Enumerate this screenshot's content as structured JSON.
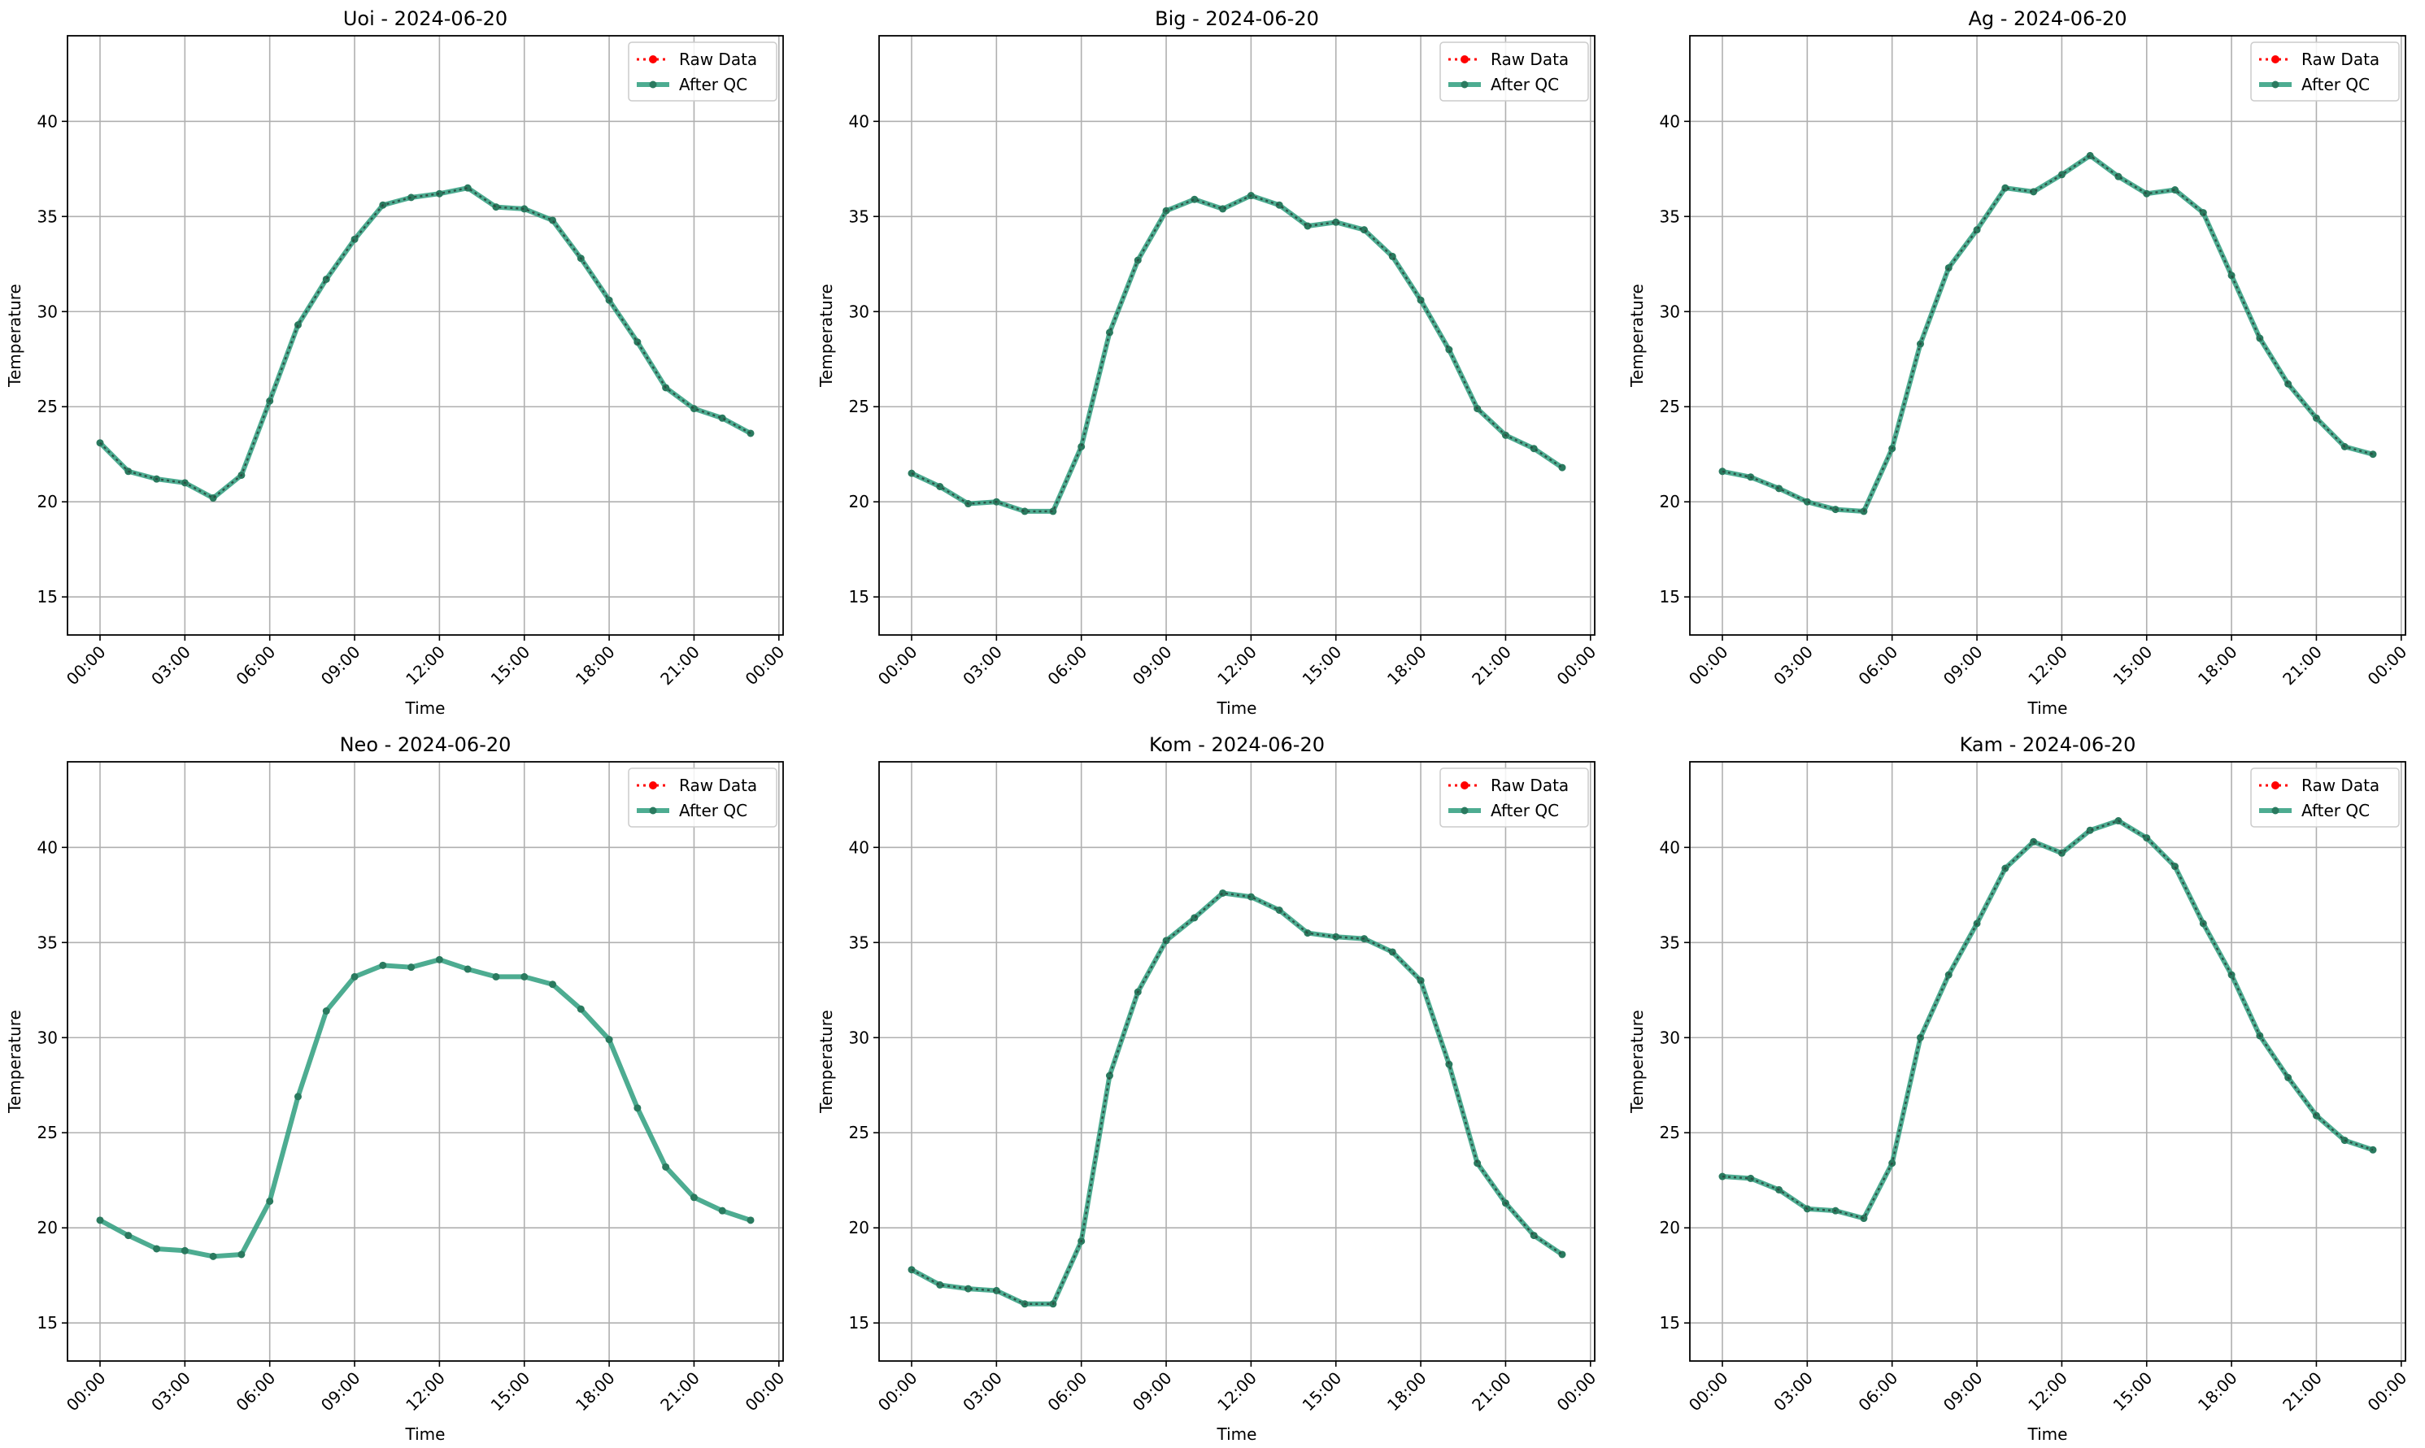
{
  "figure": {
    "background": "#ffffff"
  },
  "style": {
    "raw_color": "#ff0000",
    "qc_color": "#2e9e7e",
    "qc_marker_color": "#2a7a5f",
    "grid_color": "#b0b0b0"
  },
  "chart_data": [
    {
      "type": "line",
      "title": "Uoi - 2024-06-20",
      "xlabel": "Time",
      "ylabel": "Temperature",
      "x_hours": [
        0,
        1,
        2,
        3,
        4,
        5,
        6,
        7,
        8,
        9,
        10,
        11,
        12,
        13,
        14,
        15,
        16,
        17,
        18,
        19,
        20,
        21,
        22,
        23
      ],
      "xticks": [
        "00:00",
        "03:00",
        "06:00",
        "09:00",
        "12:00",
        "15:00",
        "18:00",
        "21:00",
        "00:00"
      ],
      "xlim_hours": [
        -1.15,
        24.15
      ],
      "yticks": [
        15,
        20,
        25,
        30,
        35,
        40
      ],
      "ylim": [
        13,
        44.5
      ],
      "grid": true,
      "legend": "upper right",
      "raw_visible": true,
      "series": [
        {
          "name": "Raw Data",
          "values": [
            23.1,
            21.6,
            21.2,
            21.0,
            20.2,
            21.4,
            25.3,
            29.3,
            31.7,
            33.8,
            35.6,
            36.0,
            36.2,
            36.5,
            35.5,
            35.4,
            34.8,
            32.8,
            30.6,
            28.4,
            26.0,
            24.9,
            24.4,
            23.6
          ]
        },
        {
          "name": "After QC",
          "values": [
            23.1,
            21.6,
            21.2,
            21.0,
            20.2,
            21.4,
            25.3,
            29.3,
            31.7,
            33.8,
            35.6,
            36.0,
            36.2,
            36.5,
            35.5,
            35.4,
            34.8,
            32.8,
            30.6,
            28.4,
            26.0,
            24.9,
            24.4,
            23.6
          ]
        }
      ]
    },
    {
      "type": "line",
      "title": "Big - 2024-06-20",
      "xlabel": "Time",
      "ylabel": "Temperature",
      "x_hours": [
        0,
        1,
        2,
        3,
        4,
        5,
        6,
        7,
        8,
        9,
        10,
        11,
        12,
        13,
        14,
        15,
        16,
        17,
        18,
        19,
        20,
        21,
        22,
        23
      ],
      "xticks": [
        "00:00",
        "03:00",
        "06:00",
        "09:00",
        "12:00",
        "15:00",
        "18:00",
        "21:00",
        "00:00"
      ],
      "xlim_hours": [
        -1.15,
        24.15
      ],
      "yticks": [
        15,
        20,
        25,
        30,
        35,
        40
      ],
      "ylim": [
        13,
        44.5
      ],
      "grid": true,
      "legend": "upper right",
      "raw_visible": true,
      "series": [
        {
          "name": "Raw Data",
          "values": [
            21.5,
            20.8,
            19.9,
            20.0,
            19.5,
            19.5,
            22.9,
            28.9,
            32.7,
            35.3,
            35.9,
            35.4,
            36.1,
            35.6,
            34.5,
            34.7,
            34.3,
            32.9,
            30.6,
            28.0,
            24.9,
            23.5,
            22.8,
            21.8
          ]
        },
        {
          "name": "After QC",
          "values": [
            21.5,
            20.8,
            19.9,
            20.0,
            19.5,
            19.5,
            22.9,
            28.9,
            32.7,
            35.3,
            35.9,
            35.4,
            36.1,
            35.6,
            34.5,
            34.7,
            34.3,
            32.9,
            30.6,
            28.0,
            24.9,
            23.5,
            22.8,
            21.8
          ]
        }
      ]
    },
    {
      "type": "line",
      "title": "Ag - 2024-06-20",
      "xlabel": "Time",
      "ylabel": "Temperature",
      "x_hours": [
        0,
        1,
        2,
        3,
        4,
        5,
        6,
        7,
        8,
        9,
        10,
        11,
        12,
        13,
        14,
        15,
        16,
        17,
        18,
        19,
        20,
        21,
        22,
        23
      ],
      "xticks": [
        "00:00",
        "03:00",
        "06:00",
        "09:00",
        "12:00",
        "15:00",
        "18:00",
        "21:00",
        "00:00"
      ],
      "xlim_hours": [
        -1.15,
        24.15
      ],
      "yticks": [
        15,
        20,
        25,
        30,
        35,
        40
      ],
      "ylim": [
        13,
        44.5
      ],
      "grid": true,
      "legend": "upper right",
      "raw_visible": true,
      "series": [
        {
          "name": "Raw Data",
          "values": [
            21.6,
            21.3,
            20.7,
            20.0,
            19.6,
            19.5,
            22.8,
            28.3,
            32.3,
            34.3,
            36.5,
            36.3,
            37.2,
            38.2,
            37.1,
            36.2,
            36.4,
            35.2,
            31.9,
            28.6,
            26.2,
            24.4,
            22.9,
            22.5
          ]
        },
        {
          "name": "After QC",
          "values": [
            21.6,
            21.3,
            20.7,
            20.0,
            19.6,
            19.5,
            22.8,
            28.3,
            32.3,
            34.3,
            36.5,
            36.3,
            37.2,
            38.2,
            37.1,
            36.2,
            36.4,
            35.2,
            31.9,
            28.6,
            26.2,
            24.4,
            22.9,
            22.5
          ]
        }
      ]
    },
    {
      "type": "line",
      "title": "Neo - 2024-06-20",
      "xlabel": "Time",
      "ylabel": "Temperature",
      "x_hours": [
        0,
        1,
        2,
        3,
        4,
        5,
        6,
        7,
        8,
        9,
        10,
        11,
        12,
        13,
        14,
        15,
        16,
        17,
        18,
        19,
        20,
        21,
        22,
        23
      ],
      "xticks": [
        "00:00",
        "03:00",
        "06:00",
        "09:00",
        "12:00",
        "15:00",
        "18:00",
        "21:00",
        "00:00"
      ],
      "xlim_hours": [
        -1.15,
        24.15
      ],
      "yticks": [
        15,
        20,
        25,
        30,
        35,
        40
      ],
      "ylim": [
        13,
        44.5
      ],
      "grid": true,
      "legend": "upper right",
      "raw_visible": false,
      "series": [
        {
          "name": "Raw Data",
          "values": []
        },
        {
          "name": "After QC",
          "values": [
            20.4,
            19.6,
            18.9,
            18.8,
            18.5,
            18.6,
            21.4,
            26.9,
            31.4,
            33.2,
            33.8,
            33.7,
            34.1,
            33.6,
            33.2,
            33.2,
            32.8,
            31.5,
            29.9,
            26.3,
            23.2,
            21.6,
            20.9,
            20.4
          ]
        }
      ]
    },
    {
      "type": "line",
      "title": "Kom - 2024-06-20",
      "xlabel": "Time",
      "ylabel": "Temperature",
      "x_hours": [
        0,
        1,
        2,
        3,
        4,
        5,
        6,
        7,
        8,
        9,
        10,
        11,
        12,
        13,
        14,
        15,
        16,
        17,
        18,
        19,
        20,
        21,
        22,
        23
      ],
      "xticks": [
        "00:00",
        "03:00",
        "06:00",
        "09:00",
        "12:00",
        "15:00",
        "18:00",
        "21:00",
        "00:00"
      ],
      "xlim_hours": [
        -1.15,
        24.15
      ],
      "yticks": [
        15,
        20,
        25,
        30,
        35,
        40
      ],
      "ylim": [
        13,
        44.5
      ],
      "grid": true,
      "legend": "upper right",
      "raw_visible": true,
      "series": [
        {
          "name": "Raw Data",
          "values": [
            17.8,
            17.0,
            16.8,
            16.7,
            16.0,
            16.0,
            19.3,
            28.0,
            32.4,
            35.1,
            36.3,
            37.6,
            37.4,
            36.7,
            35.5,
            35.3,
            35.2,
            34.5,
            33.0,
            28.6,
            23.4,
            21.3,
            19.6,
            18.6
          ]
        },
        {
          "name": "After QC",
          "values": [
            17.8,
            17.0,
            16.8,
            16.7,
            16.0,
            16.0,
            19.3,
            28.0,
            32.4,
            35.1,
            36.3,
            37.6,
            37.4,
            36.7,
            35.5,
            35.3,
            35.2,
            34.5,
            33.0,
            28.6,
            23.4,
            21.3,
            19.6,
            18.6
          ]
        }
      ]
    },
    {
      "type": "line",
      "title": "Kam - 2024-06-20",
      "xlabel": "Time",
      "ylabel": "Temperature",
      "x_hours": [
        0,
        1,
        2,
        3,
        4,
        5,
        6,
        7,
        8,
        9,
        10,
        11,
        12,
        13,
        14,
        15,
        16,
        17,
        18,
        19,
        20,
        21,
        22,
        23
      ],
      "xticks": [
        "00:00",
        "03:00",
        "06:00",
        "09:00",
        "12:00",
        "15:00",
        "18:00",
        "21:00",
        "00:00"
      ],
      "xlim_hours": [
        -1.15,
        24.15
      ],
      "yticks": [
        15,
        20,
        25,
        30,
        35,
        40
      ],
      "ylim": [
        13,
        44.5
      ],
      "grid": true,
      "legend": "upper right",
      "raw_visible": true,
      "series": [
        {
          "name": "Raw Data",
          "values": [
            22.7,
            22.6,
            22.0,
            21.0,
            20.9,
            20.5,
            23.4,
            30.0,
            33.3,
            36.0,
            38.9,
            40.3,
            39.7,
            40.9,
            41.4,
            40.5,
            39.0,
            36.0,
            33.3,
            30.1,
            27.9,
            25.9,
            24.6,
            24.1
          ]
        },
        {
          "name": "After QC",
          "values": [
            22.7,
            22.6,
            22.0,
            21.0,
            20.9,
            20.5,
            23.4,
            30.0,
            33.3,
            36.0,
            38.9,
            40.3,
            39.7,
            40.9,
            41.4,
            40.5,
            39.0,
            36.0,
            33.3,
            30.1,
            27.9,
            25.9,
            24.6,
            24.1
          ]
        }
      ]
    }
  ]
}
